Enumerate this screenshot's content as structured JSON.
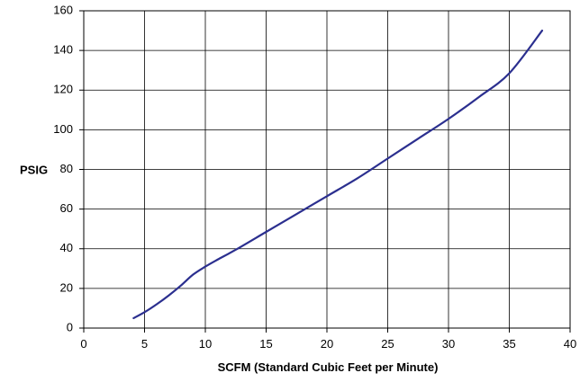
{
  "chart_data": {
    "type": "line",
    "title": "",
    "xlabel": "SCFM (Standard Cubic Feet per Minute)",
    "ylabel": "PSIG",
    "xlim": [
      0,
      40
    ],
    "ylim": [
      0,
      160
    ],
    "xticks": [
      0,
      5,
      10,
      15,
      20,
      25,
      30,
      35,
      40
    ],
    "yticks": [
      0,
      20,
      40,
      60,
      80,
      100,
      120,
      140,
      160
    ],
    "grid": true,
    "legend": "none",
    "series": [
      {
        "color": "#2b2f8f",
        "x": [
          4.1,
          5.0,
          6.0,
          7.0,
          8.0,
          9.0,
          10.0,
          11.0,
          12.5,
          15.0,
          17.5,
          20.0,
          22.5,
          25.0,
          27.5,
          30.0,
          32.5,
          35.0,
          37.7
        ],
        "y": [
          5,
          8,
          12,
          16.5,
          21.5,
          27,
          31,
          34.5,
          39.5,
          48.5,
          57.5,
          66.5,
          75.5,
          85.5,
          95.5,
          105.5,
          116.5,
          128.5,
          150
        ]
      }
    ]
  }
}
